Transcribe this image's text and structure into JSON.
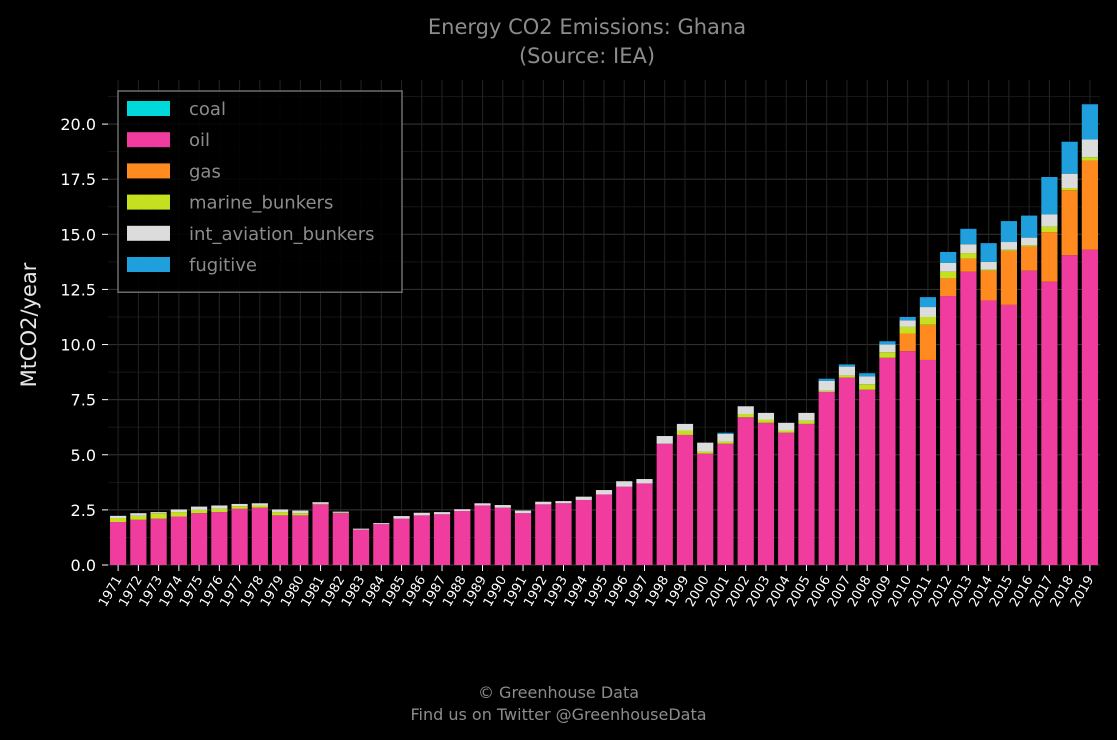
{
  "chart_data": {
    "type": "bar",
    "stacked": true,
    "title": "Energy CO2 Emissions: Ghana",
    "subtitle": "(Source: IEA)",
    "xlabel": "",
    "ylabel": "MtCO2/year",
    "ylim": [
      0,
      22
    ],
    "yticks": [
      "0.0",
      "2.5",
      "5.0",
      "7.5",
      "10.0",
      "12.5",
      "15.0",
      "17.5",
      "20.0"
    ],
    "ytick_values": [
      0,
      2.5,
      5,
      7.5,
      10,
      12.5,
      15,
      17.5,
      20
    ],
    "grid": true,
    "legend_position": "top-left",
    "categories": [
      "1971",
      "1972",
      "1973",
      "1974",
      "1975",
      "1976",
      "1977",
      "1978",
      "1979",
      "1980",
      "1981",
      "1982",
      "1983",
      "1984",
      "1985",
      "1986",
      "1987",
      "1988",
      "1989",
      "1990",
      "1991",
      "1992",
      "1993",
      "1994",
      "1995",
      "1996",
      "1997",
      "1998",
      "1999",
      "2000",
      "2001",
      "2002",
      "2003",
      "2004",
      "2005",
      "2006",
      "2007",
      "2008",
      "2009",
      "2010",
      "2011",
      "2012",
      "2013",
      "2014",
      "2015",
      "2016",
      "2017",
      "2018",
      "2019"
    ],
    "series": [
      {
        "name": "coal",
        "color": "#00d9d9",
        "values": [
          0,
          0,
          0,
          0,
          0,
          0,
          0,
          0,
          0,
          0,
          0,
          0,
          0,
          0,
          0,
          0,
          0,
          0,
          0,
          0,
          0,
          0,
          0,
          0,
          0,
          0,
          0,
          0,
          0,
          0,
          0,
          0,
          0,
          0,
          0,
          0,
          0,
          0,
          0,
          0,
          0,
          0,
          0,
          0,
          0,
          0,
          0,
          0,
          0
        ]
      },
      {
        "name": "oil",
        "color": "#f03c9e",
        "values": [
          1.95,
          2.05,
          2.1,
          2.2,
          2.35,
          2.4,
          2.55,
          2.6,
          2.25,
          2.25,
          2.75,
          2.35,
          1.6,
          1.85,
          2.1,
          2.25,
          2.3,
          2.45,
          2.7,
          2.6,
          2.35,
          2.75,
          2.8,
          2.95,
          3.2,
          3.55,
          3.7,
          5.5,
          5.9,
          5.05,
          5.5,
          6.7,
          6.45,
          6.0,
          6.4,
          7.85,
          8.5,
          7.95,
          9.4,
          9.7,
          9.3,
          12.2,
          13.3,
          12.0,
          11.8,
          13.35,
          12.85,
          14.05,
          14.3
        ]
      },
      {
        "name": "gas",
        "color": "#ff8a1f",
        "values": [
          0,
          0,
          0,
          0,
          0,
          0,
          0,
          0,
          0,
          0,
          0,
          0,
          0,
          0,
          0,
          0,
          0,
          0,
          0,
          0,
          0,
          0,
          0,
          0,
          0,
          0,
          0,
          0,
          0,
          0,
          0,
          0,
          0,
          0,
          0,
          0,
          0,
          0,
          0,
          0.8,
          1.6,
          0.8,
          0.6,
          1.35,
          2.45,
          1.1,
          2.25,
          2.95,
          4.05
        ]
      },
      {
        "name": "marine_bunkers",
        "color": "#c5e01e",
        "values": [
          0.18,
          0.18,
          0.25,
          0.2,
          0.15,
          0.15,
          0.12,
          0.1,
          0.15,
          0.1,
          0.02,
          0.02,
          0,
          0,
          0,
          0,
          0,
          0,
          0,
          0,
          0,
          0,
          0,
          0,
          0,
          0,
          0,
          0,
          0.2,
          0.1,
          0.1,
          0.15,
          0.15,
          0.1,
          0.15,
          0.05,
          0.1,
          0.25,
          0.25,
          0.3,
          0.35,
          0.3,
          0.25,
          0.05,
          0.05,
          0.05,
          0.25,
          0.1,
          0.15
        ]
      },
      {
        "name": "int_aviation_bunkers",
        "color": "#dcdcdc",
        "values": [
          0.1,
          0.12,
          0.05,
          0.12,
          0.15,
          0.15,
          0.1,
          0.1,
          0.12,
          0.12,
          0.08,
          0.05,
          0.05,
          0.05,
          0.12,
          0.12,
          0.1,
          0.08,
          0.1,
          0.12,
          0.12,
          0.12,
          0.1,
          0.15,
          0.2,
          0.25,
          0.2,
          0.35,
          0.3,
          0.4,
          0.35,
          0.35,
          0.3,
          0.35,
          0.35,
          0.45,
          0.4,
          0.35,
          0.35,
          0.3,
          0.45,
          0.4,
          0.4,
          0.35,
          0.35,
          0.35,
          0.55,
          0.65,
          0.8
        ]
      },
      {
        "name": "fugitive",
        "color": "#1fa0dc",
        "values": [
          0,
          0,
          0,
          0,
          0,
          0,
          0,
          0,
          0,
          0,
          0,
          0,
          0,
          0,
          0,
          0,
          0,
          0,
          0,
          0,
          0,
          0,
          0,
          0,
          0,
          0,
          0,
          0,
          0,
          0,
          0.05,
          0,
          0,
          0,
          0,
          0.1,
          0.1,
          0.15,
          0.15,
          0.15,
          0.45,
          0.5,
          0.7,
          0.85,
          0.95,
          1.0,
          1.7,
          1.45,
          1.6
        ]
      }
    ]
  },
  "footer": {
    "line1": "© Greenhouse Data",
    "line2": "Find us on Twitter @GreenhouseData"
  }
}
